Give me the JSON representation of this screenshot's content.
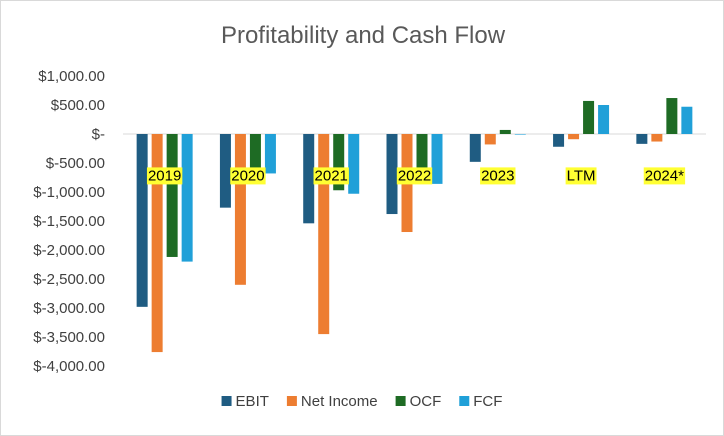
{
  "chart_data": {
    "type": "bar",
    "title": "Profitability and Cash Flow",
    "categories": [
      "2019",
      "2020",
      "2021",
      "2022",
      "2023",
      "LTM",
      "2024*"
    ],
    "series": [
      {
        "name": "EBIT",
        "color": "#1f5c82",
        "values": [
          -2980,
          -1270,
          -1540,
          -1380,
          -480,
          -220,
          -170
        ]
      },
      {
        "name": "Net Income",
        "color": "#ed7d31",
        "values": [
          -3760,
          -2600,
          -3450,
          -1690,
          -180,
          -90,
          -130
        ]
      },
      {
        "name": "OCF",
        "color": "#1e6b24",
        "values": [
          -2120,
          -620,
          -970,
          -790,
          70,
          570,
          620
        ]
      },
      {
        "name": "FCF",
        "color": "#20a0d8",
        "values": [
          -2200,
          -680,
          -1030,
          -860,
          -10,
          500,
          470
        ]
      }
    ],
    "ylim": [
      -4000,
      1000
    ],
    "yticks": [
      1000,
      500,
      0,
      -500,
      -1000,
      -1500,
      -2000,
      -2500,
      -3000,
      -3500,
      -4000
    ],
    "ytick_labels": [
      "$1,000.00",
      "$500.00",
      "$-",
      "$-500.00",
      "$-1,000.00",
      "$-1,500.00",
      "$-2,000.00",
      "$-2,500.00",
      "$-3,000.00",
      "$-3,500.00",
      "$-4,000.00"
    ],
    "category_label_highlight": "#ffff33",
    "grid": false,
    "legend": "bottom",
    "xlabel": "",
    "ylabel": ""
  }
}
